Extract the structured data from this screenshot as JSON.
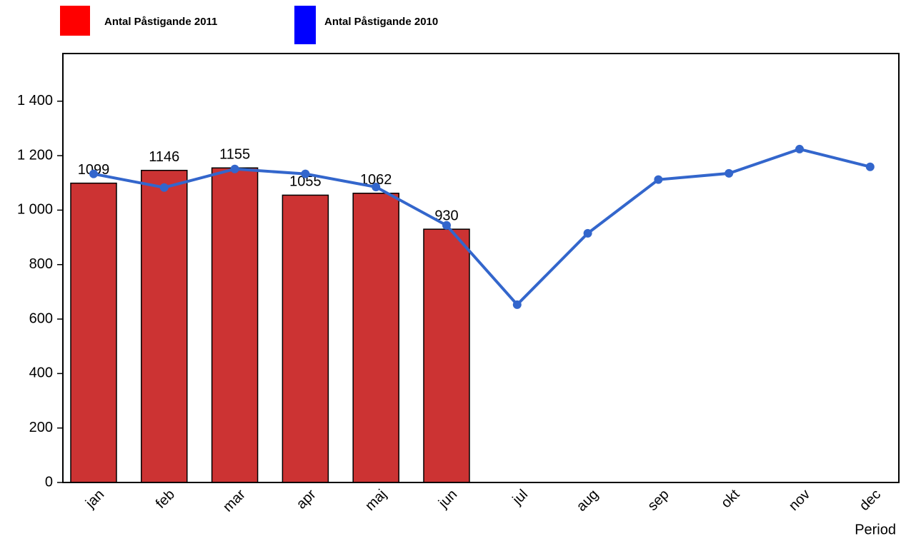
{
  "chart_data": {
    "type": "bar-line",
    "x_label": "Period",
    "categories": [
      "jan",
      "feb",
      "mar",
      "apr",
      "maj",
      "jun",
      "jul",
      "aug",
      "sep",
      "okt",
      "nov",
      "dec"
    ],
    "series": [
      {
        "name": "Antal Påstigande 2011",
        "type": "bar",
        "color": "#cc3333",
        "legend_color": "#ff0000",
        "values": [
          1099,
          1146,
          1155,
          1055,
          1062,
          930,
          null,
          null,
          null,
          null,
          null,
          null
        ]
      },
      {
        "name": "Antal Påstigande 2010",
        "type": "line",
        "color": "#3366cc",
        "legend_color": "#0000ff",
        "values": [
          1133,
          1083,
          1151,
          1133,
          1085,
          944,
          653,
          915,
          1112,
          1135,
          1224,
          1159
        ]
      }
    ],
    "ylim": [
      0,
      1575
    ],
    "yticks": [
      0,
      200,
      400,
      600,
      800,
      {
        "value": 1000,
        "label": "1 000"
      },
      {
        "value": 1200,
        "label": "1 200"
      },
      {
        "value": 1400,
        "label": "1 400"
      }
    ]
  }
}
